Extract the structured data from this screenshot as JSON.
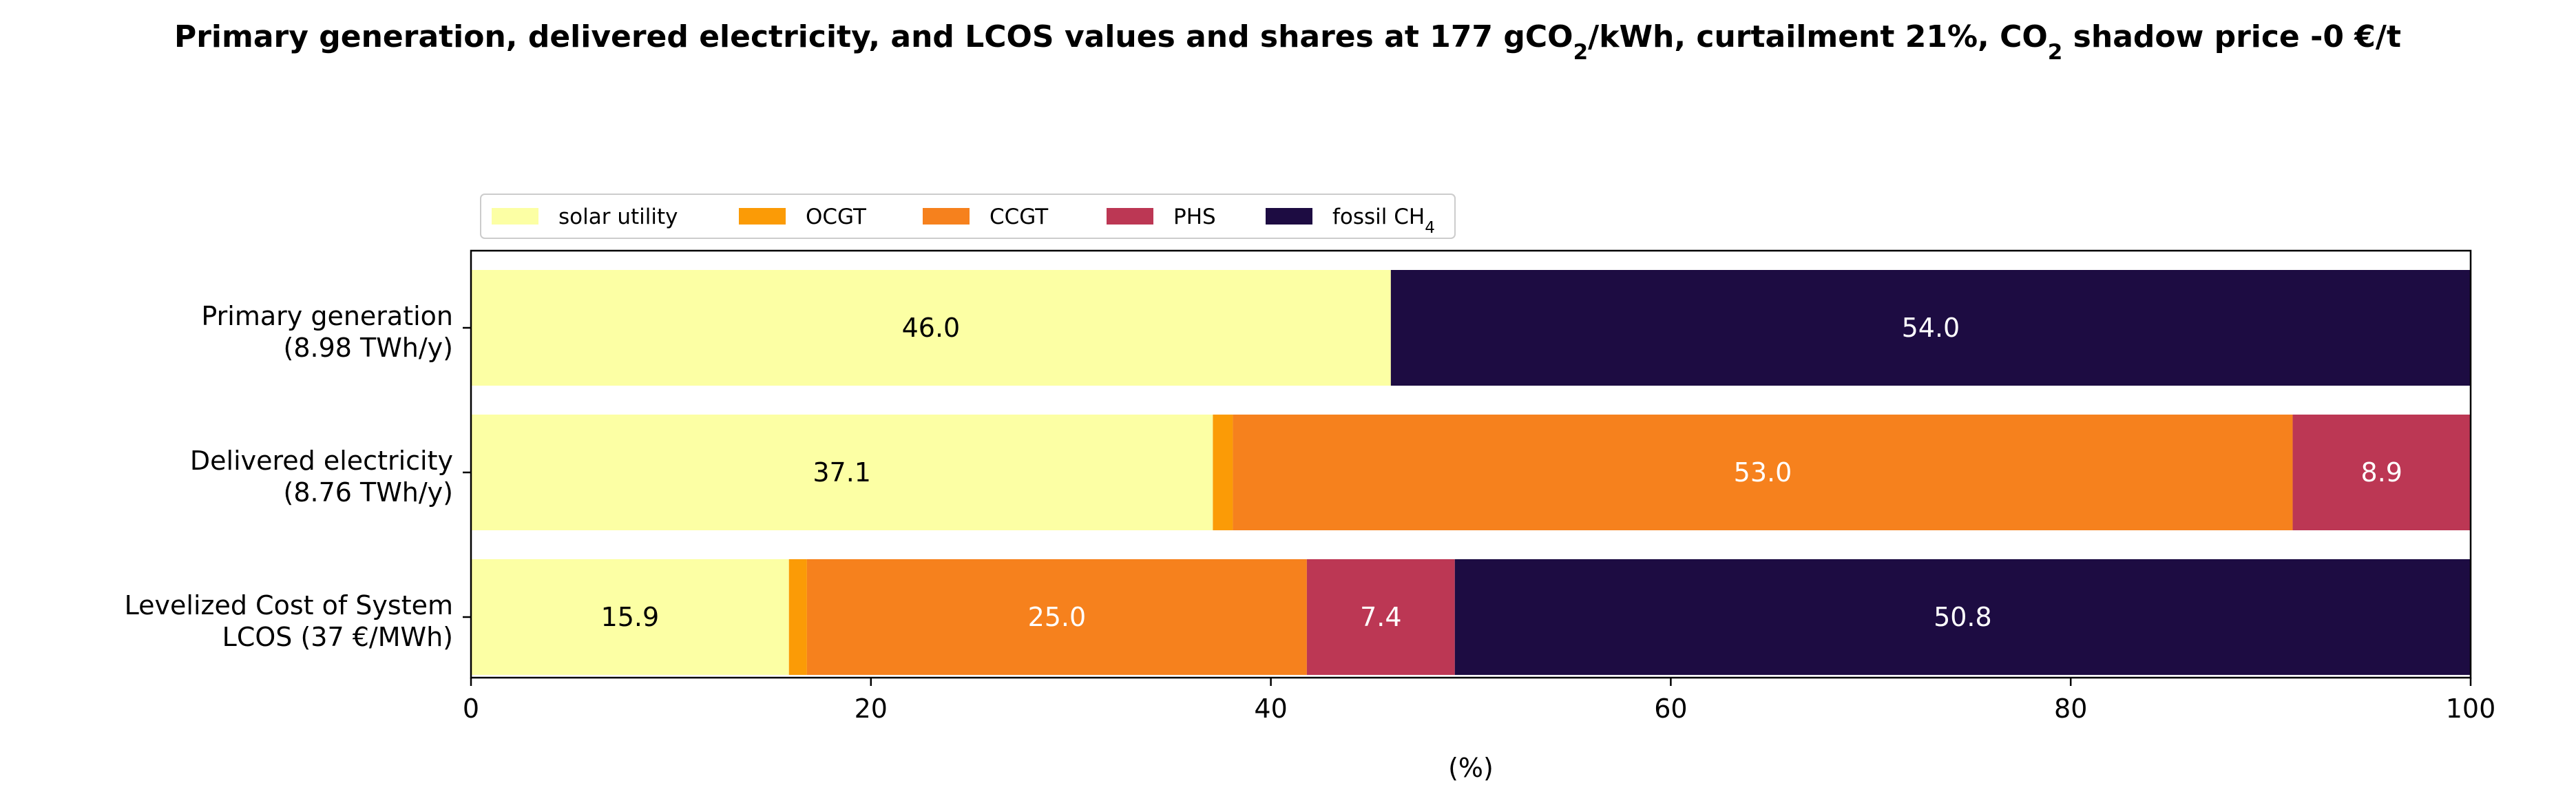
{
  "chart_data": {
    "type": "bar",
    "orientation": "horizontal",
    "stacked": true,
    "title": "Primary generation, delivered electricity, and LCOS values and shares at 177 gCO2/kWh, curtailment 21%, CO2 shadow price -0 €/t",
    "title_parts": [
      {
        "text": "Primary generation, delivered electricity, and LCOS values and shares at 177 gCO",
        "sub": false
      },
      {
        "text": "2",
        "sub": true
      },
      {
        "text": "/kWh, curtailment 21%, CO",
        "sub": false
      },
      {
        "text": "2",
        "sub": true
      },
      {
        "text": " shadow price -0 €/t",
        "sub": false
      }
    ],
    "xlabel": "(%)",
    "ylabel": "",
    "xlim": [
      0,
      100
    ],
    "xticks": [
      "0",
      "20",
      "40",
      "60",
      "80",
      "100"
    ],
    "categories": [
      [
        "Primary generation",
        "(8.98 TWh/y)"
      ],
      [
        "Delivered electricity",
        "(8.76 TWh/y)"
      ],
      [
        "Levelized Cost of System",
        "LCOS  (37 €/MWh)"
      ]
    ],
    "series": [
      {
        "name": "solar utility",
        "color": "#fcffa4",
        "text_color": "#000000",
        "values": [
          46.0,
          37.1,
          15.9
        ]
      },
      {
        "name": "OCGT",
        "color": "#fb9b06",
        "text_color": "#ffffff",
        "values": [
          0.0,
          1.0,
          0.9
        ]
      },
      {
        "name": "CCGT",
        "color": "#f6811d",
        "text_color": "#ffffff",
        "values": [
          0.0,
          53.0,
          25.0
        ]
      },
      {
        "name": "PHS",
        "color": "#bc3754",
        "text_color": "#ffffff",
        "values": [
          0.0,
          8.9,
          7.4
        ]
      },
      {
        "name": "fossil CH4",
        "name_base": "fossil CH",
        "name_sub": "4",
        "color": "#1d0c42",
        "text_color": "#ffffff",
        "values": [
          54.0,
          0.0,
          50.8
        ]
      }
    ],
    "value_labels": [
      {
        "row": 0,
        "series": 0,
        "text": "46.0"
      },
      {
        "row": 0,
        "series": 4,
        "text": "54.0"
      },
      {
        "row": 1,
        "series": 0,
        "text": "37.1"
      },
      {
        "row": 1,
        "series": 2,
        "text": "53.0"
      },
      {
        "row": 1,
        "series": 3,
        "text": "8.9"
      },
      {
        "row": 2,
        "series": 0,
        "text": "15.9"
      },
      {
        "row": 2,
        "series": 2,
        "text": "25.0"
      },
      {
        "row": 2,
        "series": 3,
        "text": "7.4"
      },
      {
        "row": 2,
        "series": 4,
        "text": "50.8"
      }
    ],
    "legend": {
      "position": "top-left",
      "ncol": 5
    },
    "grid": false
  }
}
